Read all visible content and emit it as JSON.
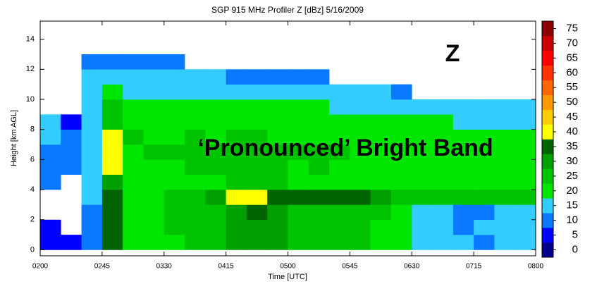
{
  "chart_data": {
    "type": "heatmap",
    "title": "SGP 915 MHz Profiler Z [dBz]   5/16/2009",
    "x_label": "Time [UTC]",
    "y_label": "Height [km AGL]",
    "annotations": [
      "Z",
      "‘Pronounced’ Bright Band"
    ],
    "annotation_colors": [
      "#000000",
      "#00a000"
    ],
    "xlim": [
      2,
      8
    ],
    "xticks": [
      {
        "value": 2,
        "label": "0200"
      },
      {
        "value": 2.75,
        "label": "0245"
      },
      {
        "value": 3.5,
        "label": "0330"
      },
      {
        "value": 4.25,
        "label": "0415"
      },
      {
        "value": 5,
        "label": "0500"
      },
      {
        "value": 5.75,
        "label": "0545"
      },
      {
        "value": 6.5,
        "label": "0630"
      },
      {
        "value": 7.25,
        "label": "0715"
      },
      {
        "value": 8,
        "label": "0800"
      }
    ],
    "ylim": [
      -0.4,
      15.2
    ],
    "yticks": [
      0,
      2,
      4,
      6,
      8,
      10,
      12,
      14
    ],
    "x_edges": [
      2,
      2.25,
      2.5,
      2.75,
      3,
      3.25,
      3.5,
      3.75,
      4,
      4.25,
      4.5,
      4.75,
      5,
      5.25,
      5.5,
      5.75,
      6,
      6.25,
      6.5,
      6.75,
      7,
      7.25,
      7.5,
      7.75,
      8
    ],
    "y_edges": [
      0,
      1,
      2,
      3,
      4,
      5,
      6,
      7,
      8,
      9,
      10,
      11,
      12,
      13
    ],
    "z": [
      [
        5,
        5,
        10,
        35,
        20,
        20,
        20,
        25,
        25,
        30,
        30,
        30,
        25,
        25,
        25,
        25,
        20,
        20,
        15,
        15,
        15,
        10,
        15,
        15
      ],
      [
        5,
        null,
        10,
        35,
        20,
        20,
        25,
        25,
        25,
        30,
        30,
        30,
        25,
        25,
        25,
        25,
        20,
        20,
        15,
        15,
        10,
        15,
        15,
        15
      ],
      [
        null,
        null,
        10,
        35,
        20,
        20,
        25,
        25,
        25,
        30,
        35,
        30,
        25,
        25,
        25,
        25,
        25,
        20,
        15,
        15,
        10,
        10,
        15,
        15
      ],
      [
        null,
        null,
        15,
        35,
        20,
        20,
        25,
        25,
        30,
        40,
        40,
        35,
        35,
        35,
        35,
        35,
        30,
        25,
        25,
        25,
        25,
        25,
        25,
        25
      ],
      [
        10,
        null,
        15,
        30,
        20,
        20,
        20,
        20,
        20,
        25,
        25,
        25,
        20,
        20,
        20,
        20,
        20,
        20,
        20,
        20,
        20,
        20,
        20,
        20
      ],
      [
        10,
        10,
        15,
        40,
        20,
        20,
        20,
        25,
        25,
        25,
        25,
        25,
        20,
        25,
        20,
        20,
        20,
        20,
        20,
        20,
        20,
        20,
        20,
        20
      ],
      [
        10,
        10,
        15,
        40,
        20,
        25,
        25,
        25,
        25,
        25,
        25,
        25,
        25,
        25,
        25,
        20,
        20,
        20,
        20,
        20,
        20,
        20,
        20,
        20
      ],
      [
        15,
        10,
        15,
        40,
        25,
        20,
        20,
        25,
        20,
        25,
        25,
        20,
        20,
        20,
        20,
        20,
        20,
        20,
        20,
        20,
        20,
        20,
        20,
        20
      ],
      [
        15,
        5,
        15,
        25,
        20,
        20,
        20,
        20,
        20,
        20,
        20,
        20,
        20,
        20,
        20,
        20,
        20,
        20,
        20,
        20,
        15,
        15,
        15,
        15
      ],
      [
        null,
        null,
        15,
        25,
        20,
        20,
        20,
        20,
        20,
        20,
        20,
        20,
        20,
        20,
        15,
        15,
        15,
        15,
        15,
        15,
        15,
        15,
        15,
        15
      ],
      [
        null,
        null,
        15,
        20,
        15,
        15,
        15,
        15,
        15,
        15,
        15,
        15,
        15,
        15,
        15,
        15,
        15,
        10,
        null,
        null,
        null,
        null,
        null,
        null
      ],
      [
        null,
        null,
        15,
        15,
        15,
        15,
        15,
        15,
        15,
        10,
        10,
        10,
        10,
        10,
        null,
        null,
        null,
        null,
        null,
        null,
        null,
        null,
        null,
        null
      ],
      [
        null,
        null,
        10,
        10,
        10,
        10,
        10,
        null,
        null,
        null,
        null,
        null,
        null,
        null,
        null,
        null,
        null,
        null,
        null,
        null,
        null,
        null,
        null,
        null
      ]
    ],
    "clim": [
      -2.5,
      77.5
    ],
    "cticks": [
      0,
      5,
      10,
      15,
      20,
      25,
      30,
      35,
      40,
      45,
      50,
      55,
      60,
      65,
      70,
      75
    ],
    "colors": [
      "#00008b",
      "#0000ff",
      "#0a78ff",
      "#33ccff",
      "#00e600",
      "#00c400",
      "#00a000",
      "#006400",
      "#ffff00",
      "#ffcc00",
      "#ff9900",
      "#ff6600",
      "#ff3300",
      "#ff0000",
      "#cc0000",
      "#8b0000"
    ]
  }
}
